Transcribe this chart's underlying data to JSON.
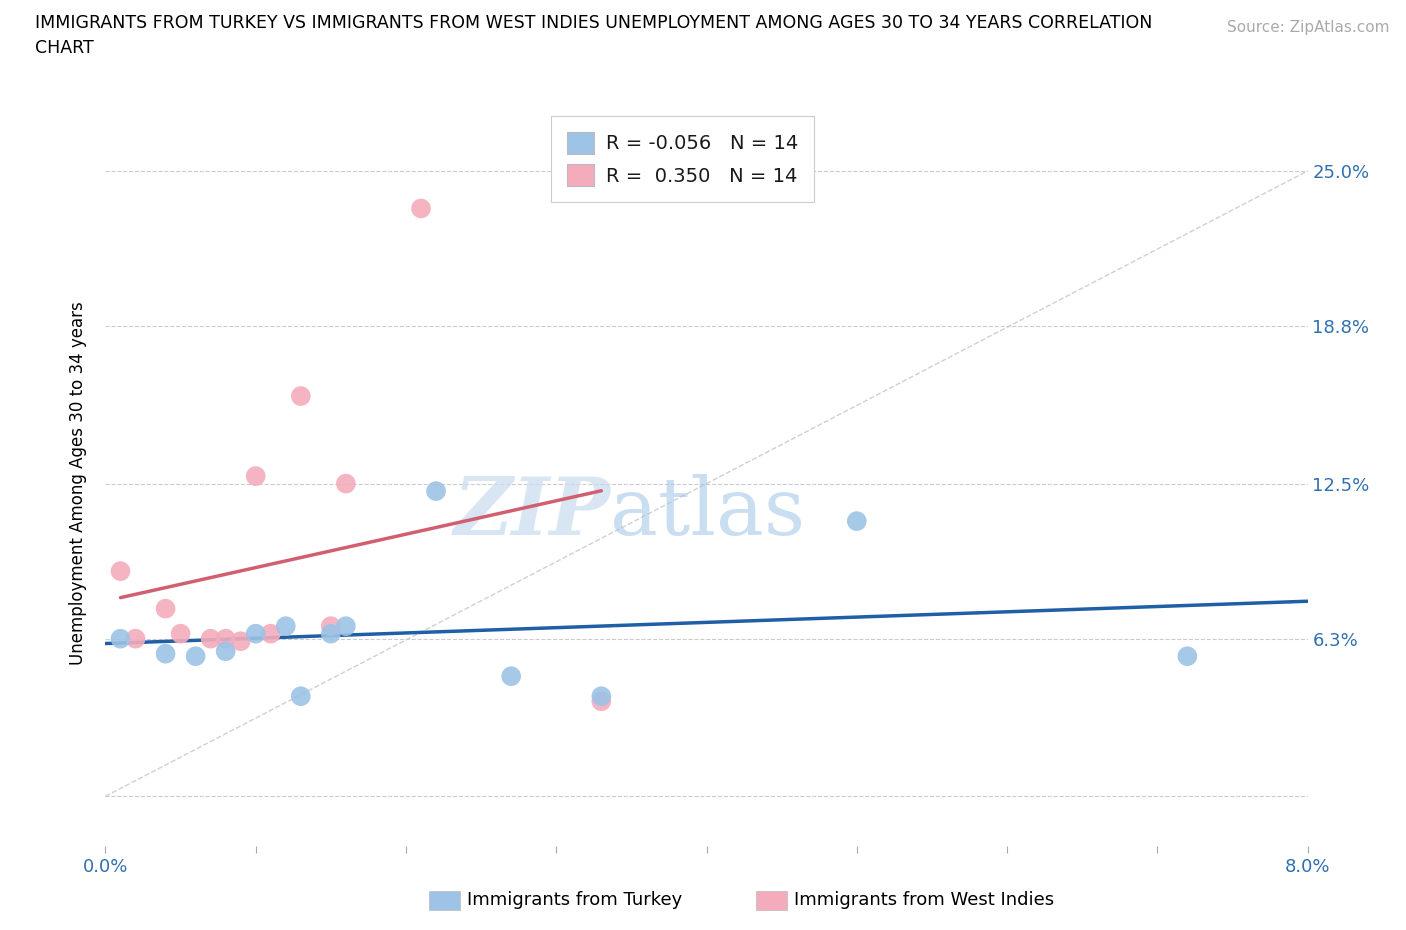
{
  "title_line1": "IMMIGRANTS FROM TURKEY VS IMMIGRANTS FROM WEST INDIES UNEMPLOYMENT AMONG AGES 30 TO 34 YEARS CORRELATION",
  "title_line2": "CHART",
  "source_text": "Source: ZipAtlas.com",
  "ylabel": "Unemployment Among Ages 30 to 34 years",
  "xlim": [
    0.0,
    0.08
  ],
  "ylim": [
    -0.02,
    0.27
  ],
  "ylim_display": [
    0.0,
    0.25
  ],
  "watermark_zip": "ZIP",
  "watermark_atlas": "atlas",
  "legend_label1": "Immigrants from Turkey",
  "legend_label2": "Immigrants from West Indies",
  "R1": -0.056,
  "N1": 14,
  "R2": 0.35,
  "N2": 14,
  "color_turkey": "#9DC3E6",
  "color_westindies": "#F4ACBC",
  "color_turkey_line": "#1F5FA6",
  "color_westindies_line": "#D06070",
  "color_diagonal": "#C8C8C8",
  "turkey_x": [
    0.001,
    0.004,
    0.006,
    0.008,
    0.01,
    0.012,
    0.013,
    0.015,
    0.016,
    0.022,
    0.027,
    0.033,
    0.05,
    0.072
  ],
  "turkey_y": [
    0.063,
    0.057,
    0.056,
    0.058,
    0.065,
    0.068,
    0.04,
    0.065,
    0.068,
    0.122,
    0.048,
    0.04,
    0.11,
    0.056
  ],
  "westindies_x": [
    0.001,
    0.002,
    0.004,
    0.005,
    0.007,
    0.008,
    0.009,
    0.01,
    0.011,
    0.013,
    0.015,
    0.016,
    0.021,
    0.033
  ],
  "westindies_y": [
    0.09,
    0.063,
    0.075,
    0.065,
    0.063,
    0.063,
    0.062,
    0.128,
    0.065,
    0.16,
    0.068,
    0.125,
    0.235,
    0.038
  ],
  "ytick_positions": [
    0.0,
    0.063,
    0.125,
    0.188,
    0.25
  ],
  "ytick_labels": [
    "",
    "6.3%",
    "12.5%",
    "18.8%",
    "25.0%"
  ],
  "xtick_positions": [
    0.0,
    0.01,
    0.02,
    0.03,
    0.04,
    0.05,
    0.06,
    0.07,
    0.08
  ],
  "xtick_labels": [
    "0.0%",
    "",
    "",
    "",
    "",
    "",
    "",
    "",
    "8.0%"
  ],
  "tick_color": "#3070B0",
  "grid_color": "#CCCCCC",
  "source_color": "#AAAAAA",
  "watermark_color": "#C8DCF0"
}
